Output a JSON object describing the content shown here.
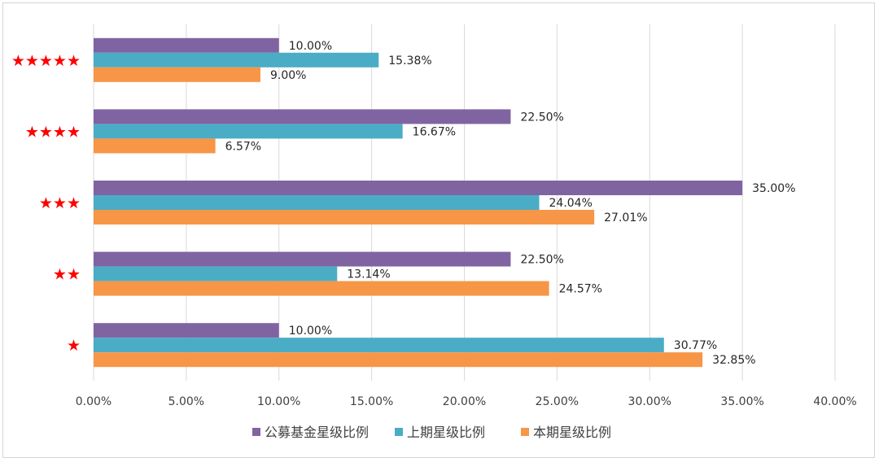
{
  "chart_data": {
    "type": "bar",
    "orientation": "horizontal",
    "categories": [
      "★★★★★",
      "★★★★",
      "★★★",
      "★★",
      "★"
    ],
    "series": [
      {
        "name": "公募基金星级比例",
        "color": "#8064a2",
        "values": [
          10.0,
          22.5,
          35.0,
          22.5,
          10.0
        ]
      },
      {
        "name": "上期星级比例",
        "color": "#4bacc6",
        "values": [
          15.38,
          16.67,
          24.04,
          13.14,
          30.77
        ]
      },
      {
        "name": "本期星级比例",
        "color": "#f79646",
        "values": [
          9.0,
          6.57,
          27.01,
          24.57,
          32.85
        ]
      }
    ],
    "data_labels": [
      [
        "10.00%",
        "15.38%",
        "9.00%"
      ],
      [
        "22.50%",
        "16.67%",
        "6.57%"
      ],
      [
        "35.00%",
        "24.04%",
        "27.01%"
      ],
      [
        "22.50%",
        "13.14%",
        "24.57%"
      ],
      [
        "10.00%",
        "30.77%",
        "32.85%"
      ]
    ],
    "x_ticks": [
      "0.00%",
      "5.00%",
      "10.00%",
      "15.00%",
      "20.00%",
      "25.00%",
      "30.00%",
      "35.00%",
      "40.00%"
    ],
    "xlim": [
      0,
      40
    ],
    "title": "",
    "xlabel": "",
    "ylabel": "",
    "grid": "vertical",
    "legend_position": "bottom",
    "category_label_color": "#ff0000"
  }
}
